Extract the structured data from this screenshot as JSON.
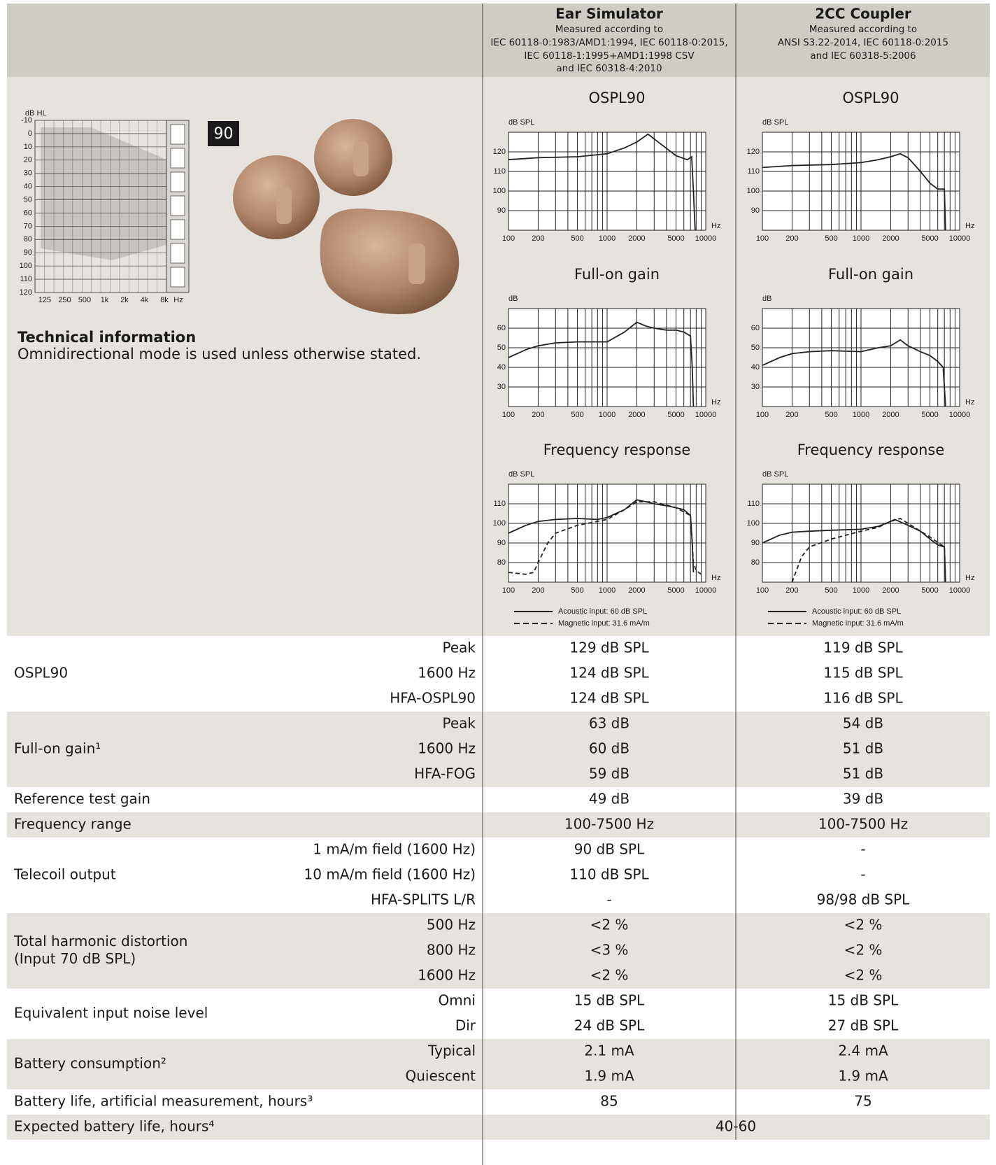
{
  "header": {
    "ear": {
      "title": "Ear Simulator",
      "lines": [
        "Measured according to",
        "IEC 60118-0:1983/AMD1:1994, IEC 60118-0:2015,",
        "IEC 60118-1:1995+AMD1:1998 CSV",
        "and IEC 60318-4:2010"
      ]
    },
    "coupler": {
      "title": "2CC Coupler",
      "lines": [
        "Measured according to",
        "ANSI S3.22-2014, IEC 60118-0:2015",
        "and IEC 60318-5:2006"
      ]
    }
  },
  "audiogram": {
    "y_label": "dB HL",
    "yticks": [
      -10,
      0,
      10,
      20,
      30,
      40,
      50,
      60,
      70,
      80,
      90,
      100,
      110,
      120
    ],
    "ylim": [
      -10,
      120
    ],
    "categories": [
      "125",
      "250",
      "500",
      "1k",
      "2k",
      "4k",
      "8k"
    ],
    "x_unit": "Hz"
  },
  "badge": "90",
  "technical": {
    "title": "Technical information",
    "text": "Omnidirectional mode is used unless otherwise stated."
  },
  "chart_data": [
    {
      "type": "line",
      "title": "OSPL90",
      "y_label": "dB SPL",
      "x_label": "Hz",
      "log_x": true,
      "xlim": [
        100,
        10000
      ],
      "ylim": [
        80,
        130
      ],
      "xticks": [
        100,
        200,
        500,
        1000,
        2000,
        5000,
        10000
      ],
      "yticks": [
        90,
        100,
        110,
        120
      ],
      "xgrid": [
        100,
        200,
        300,
        400,
        500,
        600,
        700,
        800,
        900,
        1000,
        2000,
        3000,
        4000,
        5000,
        6000,
        7000,
        8000,
        9000,
        10000
      ],
      "series": [
        {
          "color": "#222222",
          "x": [
            100,
            200,
            500,
            1000,
            1500,
            2000,
            2600,
            3500,
            5000,
            6500,
            7200,
            7500,
            7800
          ],
          "values": [
            116,
            117,
            117.5,
            119,
            122,
            125,
            129,
            124,
            118,
            116,
            117.5,
            100,
            80
          ]
        }
      ]
    },
    {
      "type": "line",
      "title": "OSPL90",
      "y_label": "dB SPL",
      "x_label": "Hz",
      "log_x": true,
      "xlim": [
        100,
        10000
      ],
      "ylim": [
        80,
        130
      ],
      "xticks": [
        100,
        200,
        500,
        1000,
        2000,
        5000,
        10000
      ],
      "yticks": [
        90,
        100,
        110,
        120
      ],
      "xgrid": [
        100,
        200,
        300,
        400,
        500,
        600,
        700,
        800,
        900,
        1000,
        2000,
        3000,
        4000,
        5000,
        6000,
        7000,
        8000,
        9000,
        10000
      ],
      "series": [
        {
          "color": "#222222",
          "x": [
            100,
            200,
            500,
            1000,
            1500,
            2000,
            2500,
            3000,
            4000,
            5000,
            6000,
            7000,
            7200
          ],
          "values": [
            112,
            113,
            113.5,
            114.5,
            116,
            117.5,
            119,
            117,
            110,
            104,
            101,
            101,
            80
          ]
        }
      ]
    },
    {
      "type": "line",
      "title": "Full-on gain",
      "y_label": "dB",
      "x_label": "Hz",
      "log_x": true,
      "xlim": [
        100,
        10000
      ],
      "ylim": [
        20,
        70
      ],
      "xticks": [
        100,
        200,
        500,
        1000,
        2000,
        5000,
        10000
      ],
      "yticks": [
        30,
        40,
        50,
        60
      ],
      "xgrid": [
        100,
        200,
        300,
        400,
        500,
        600,
        700,
        800,
        900,
        1000,
        2000,
        3000,
        4000,
        5000,
        6000,
        7000,
        8000,
        9000,
        10000
      ],
      "series": [
        {
          "color": "#222222",
          "x": [
            100,
            150,
            200,
            300,
            500,
            1000,
            1500,
            2000,
            2500,
            3000,
            4000,
            5000,
            6000,
            7000,
            7300,
            7500
          ],
          "values": [
            45,
            49,
            51,
            52.5,
            53,
            53,
            58,
            63,
            61,
            60,
            59,
            59,
            58,
            56,
            40,
            20
          ]
        }
      ]
    },
    {
      "type": "line",
      "title": "Full-on gain",
      "y_label": "dB",
      "x_label": "Hz",
      "log_x": true,
      "xlim": [
        100,
        10000
      ],
      "ylim": [
        20,
        70
      ],
      "xticks": [
        100,
        200,
        500,
        1000,
        2000,
        5000,
        10000
      ],
      "yticks": [
        30,
        40,
        50,
        60
      ],
      "xgrid": [
        100,
        200,
        300,
        400,
        500,
        600,
        700,
        800,
        900,
        1000,
        2000,
        3000,
        4000,
        5000,
        6000,
        7000,
        8000,
        9000,
        10000
      ],
      "series": [
        {
          "color": "#222222",
          "x": [
            100,
            150,
            200,
            300,
            500,
            1000,
            1500,
            2000,
            2500,
            3000,
            4000,
            5000,
            6000,
            6800,
            7000,
            7200
          ],
          "values": [
            41,
            45,
            47,
            48,
            48.5,
            48,
            50,
            51,
            54,
            51,
            48,
            46,
            43,
            40,
            30,
            20
          ]
        }
      ]
    },
    {
      "type": "line",
      "title": "Frequency response",
      "y_label": "dB SPL",
      "x_label": "Hz",
      "log_x": true,
      "xlim": [
        100,
        10000
      ],
      "ylim": [
        70,
        120
      ],
      "xticks": [
        100,
        200,
        500,
        1000,
        2000,
        5000,
        10000
      ],
      "yticks": [
        80,
        90,
        100,
        110
      ],
      "xgrid": [
        100,
        200,
        300,
        400,
        500,
        600,
        700,
        800,
        900,
        1000,
        2000,
        3000,
        4000,
        5000,
        6000,
        7000,
        8000,
        9000,
        10000
      ],
      "series": [
        {
          "name": "Acoustic input: 60 dB SPL",
          "color": "#222222",
          "dash": false,
          "x": [
            100,
            150,
            200,
            300,
            500,
            800,
            1000,
            1500,
            2000,
            2500,
            3000,
            4000,
            5000,
            6000,
            7000,
            7300,
            7500
          ],
          "values": [
            95,
            99,
            101,
            102,
            102.5,
            102,
            103,
            107,
            112,
            111,
            110,
            109,
            108,
            107,
            104,
            90,
            75
          ]
        },
        {
          "name": "Magnetic input: 31.6 mA/m",
          "color": "#222222",
          "dash": true,
          "x": [
            100,
            150,
            180,
            200,
            250,
            300,
            500,
            1000,
            1500,
            2000,
            3000,
            5000,
            7000,
            7500,
            8000,
            9000
          ],
          "values": [
            75,
            74,
            75,
            80,
            90,
            95,
            99,
            102,
            107,
            111,
            111,
            108,
            104,
            80,
            76,
            74
          ]
        }
      ]
    },
    {
      "type": "line",
      "title": "Frequency response",
      "y_label": "dB SPL",
      "x_label": "Hz",
      "log_x": true,
      "xlim": [
        100,
        10000
      ],
      "ylim": [
        70,
        120
      ],
      "xticks": [
        100,
        200,
        500,
        1000,
        2000,
        5000,
        10000
      ],
      "yticks": [
        80,
        90,
        100,
        110
      ],
      "xgrid": [
        100,
        200,
        300,
        400,
        500,
        600,
        700,
        800,
        900,
        1000,
        2000,
        3000,
        4000,
        5000,
        6000,
        7000,
        8000,
        9000,
        10000
      ],
      "series": [
        {
          "name": "Acoustic input: 60 dB SPL",
          "color": "#222222",
          "dash": false,
          "x": [
            100,
            150,
            200,
            300,
            500,
            1000,
            1500,
            2000,
            2200,
            3000,
            4000,
            5000,
            6000,
            7000,
            7200
          ],
          "values": [
            90,
            94,
            95.5,
            96,
            96.5,
            97,
            98.5,
            101,
            102,
            99,
            96,
            92,
            89,
            88,
            70
          ]
        },
        {
          "name": "Magnetic input: 31.6 mA/m",
          "color": "#222222",
          "dash": true,
          "x": [
            200,
            250,
            300,
            500,
            1000,
            1500,
            2000,
            2500,
            3000,
            5000,
            7000,
            7200
          ],
          "values": [
            70,
            83,
            88,
            92,
            96,
            98,
            101,
            102.5,
            100,
            93,
            88,
            70
          ]
        }
      ]
    }
  ],
  "table": [
    {
      "label": "OSPL90",
      "items": [
        {
          "sub": "Peak",
          "ear": "129 dB SPL",
          "coupler": "119 dB SPL"
        },
        {
          "sub": "1600 Hz",
          "ear": "124 dB SPL",
          "coupler": "115 dB SPL"
        },
        {
          "sub": "HFA-OSPL90",
          "ear": "124 dB SPL",
          "coupler": "116 dB SPL"
        }
      ]
    },
    {
      "label": "Full-on gain¹",
      "items": [
        {
          "sub": "Peak",
          "ear": "63 dB",
          "coupler": "54 dB"
        },
        {
          "sub": "1600 Hz",
          "ear": "60 dB",
          "coupler": "51 dB"
        },
        {
          "sub": "HFA-FOG",
          "ear": "59 dB",
          "coupler": "51 dB"
        }
      ]
    },
    {
      "label": "Reference test gain",
      "items": [
        {
          "ear": "49 dB",
          "coupler": "39 dB"
        }
      ]
    },
    {
      "label": "Frequency range",
      "items": [
        {
          "ear": "100-7500 Hz",
          "coupler": "100-7500 Hz"
        }
      ]
    },
    {
      "label": "Telecoil output",
      "items": [
        {
          "sub": "1 mA/m field (1600 Hz)",
          "ear": "90 dB SPL",
          "coupler": "-"
        },
        {
          "sub": "10 mA/m field (1600 Hz)",
          "ear": "110 dB SPL",
          "coupler": "-"
        },
        {
          "sub": "HFA-SPLITS L/R",
          "ear": "-",
          "coupler": "98/98 dB SPL"
        }
      ]
    },
    {
      "label": [
        "Total harmonic distortion",
        "(Input 70 dB SPL)"
      ],
      "items": [
        {
          "sub": "500 Hz",
          "ear": "<2 %",
          "coupler": "<2 %"
        },
        {
          "sub": "800 Hz",
          "ear": "<3 %",
          "coupler": "<2 %"
        },
        {
          "sub": "1600 Hz",
          "ear": "<2 %",
          "coupler": "<2 %"
        }
      ]
    },
    {
      "label": "Equivalent input noise level",
      "items": [
        {
          "sub": "Omni",
          "ear": "15 dB SPL",
          "coupler": "15 dB SPL"
        },
        {
          "sub": "Dir",
          "ear": "24 dB SPL",
          "coupler": "27 dB SPL"
        }
      ]
    },
    {
      "label": "Battery consumption²",
      "items": [
        {
          "sub": "Typical",
          "ear": "2.1 mA",
          "coupler": "2.4 mA"
        },
        {
          "sub": "Quiescent",
          "ear": "1.9 mA",
          "coupler": "1.9 mA"
        }
      ]
    },
    {
      "label": "Battery life, artificial measurement, hours³",
      "items": [
        {
          "ear": "85",
          "coupler": "75"
        }
      ]
    },
    {
      "label": "Expected battery life, hours⁴",
      "items": [
        {
          "both": "40-60"
        }
      ]
    }
  ]
}
